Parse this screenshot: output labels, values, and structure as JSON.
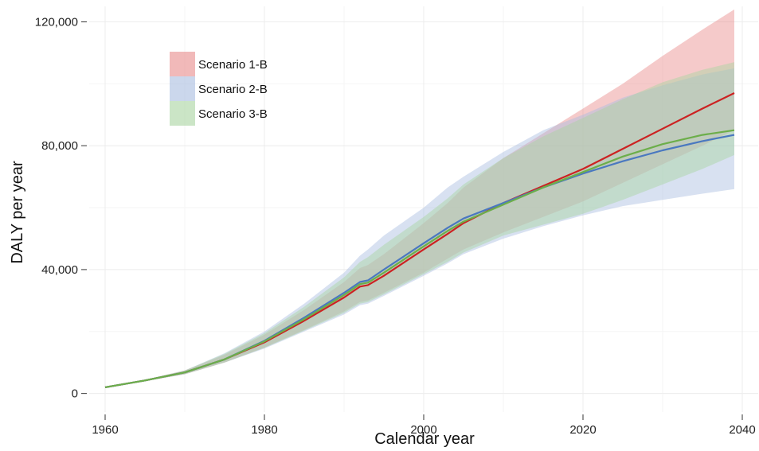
{
  "chart_data": {
    "type": "area",
    "xlabel": "Calendar year",
    "ylabel": "DALY per year",
    "xlim": [
      1958,
      2042
    ],
    "ylim": [
      -6000,
      125000
    ],
    "x_ticks": [
      1960,
      1980,
      2000,
      2020,
      2040
    ],
    "x_tick_labels": [
      "1960",
      "1980",
      "2000",
      "2020",
      "2040"
    ],
    "y_ticks": [
      0,
      40000,
      80000,
      120000
    ],
    "y_tick_labels": [
      "0",
      "40,000",
      "80,000",
      "120,000"
    ],
    "grid": true,
    "legend_position": "top-left",
    "x": [
      1960,
      1965,
      1970,
      1975,
      1980,
      1985,
      1990,
      1992,
      1993,
      1995,
      2000,
      2003,
      2005,
      2010,
      2015,
      2020,
      2025,
      2030,
      2035,
      2039
    ],
    "series": [
      {
        "name": "Scenario 1-B",
        "line_color": "#cc2222",
        "band_color": "#e88a8a",
        "values": [
          2000,
          4200,
          6800,
          11000,
          16500,
          23500,
          31000,
          34500,
          35000,
          38000,
          46500,
          51500,
          55000,
          61500,
          67000,
          72500,
          79000,
          85500,
          92000,
          97000
        ],
        "lower": [
          2000,
          4000,
          6200,
          10000,
          14800,
          20500,
          26500,
          29500,
          30000,
          32500,
          39000,
          43500,
          46500,
          52000,
          57000,
          62000,
          68000,
          74000,
          80000,
          85000
        ],
        "upper": [
          2000,
          4400,
          7400,
          12500,
          19000,
          27000,
          36000,
          40500,
          41500,
          45000,
          55000,
          61500,
          66500,
          76000,
          84000,
          92000,
          100000,
          109000,
          117500,
          124000
        ]
      },
      {
        "name": "Scenario 2-B",
        "line_color": "#4a78c0",
        "band_color": "#a8bde0",
        "values": [
          2000,
          4200,
          6800,
          11000,
          17000,
          24500,
          32500,
          36000,
          36500,
          40000,
          48500,
          53500,
          56500,
          61500,
          66500,
          71000,
          75000,
          78500,
          81500,
          83500
        ],
        "lower": [
          2000,
          4000,
          6200,
          10000,
          14500,
          20000,
          25500,
          28500,
          29000,
          31500,
          38000,
          42000,
          45000,
          50000,
          54000,
          57500,
          60500,
          62500,
          64500,
          66000
        ],
        "upper": [
          2000,
          4400,
          7400,
          13000,
          20000,
          29000,
          39000,
          44500,
          46500,
          51000,
          60000,
          66500,
          70000,
          78000,
          85000,
          90000,
          95500,
          99500,
          103000,
          105000
        ]
      },
      {
        "name": "Scenario 3-B",
        "line_color": "#6cae4a",
        "band_color": "#a8d4a0",
        "values": [
          2000,
          4200,
          6800,
          11000,
          16800,
          24000,
          31800,
          35300,
          35800,
          39000,
          47500,
          52500,
          55500,
          61000,
          66500,
          71500,
          76500,
          80500,
          83500,
          85000
        ],
        "lower": [
          2000,
          4000,
          6200,
          10000,
          14700,
          20300,
          26000,
          29000,
          29500,
          32000,
          38500,
          42500,
          45500,
          51000,
          54500,
          58000,
          62500,
          67500,
          72500,
          77000
        ],
        "upper": [
          2000,
          4400,
          7400,
          12800,
          19500,
          28000,
          37500,
          42500,
          44000,
          48000,
          57000,
          63000,
          67500,
          76000,
          83000,
          89000,
          95000,
          100500,
          104500,
          107000
        ]
      }
    ]
  }
}
